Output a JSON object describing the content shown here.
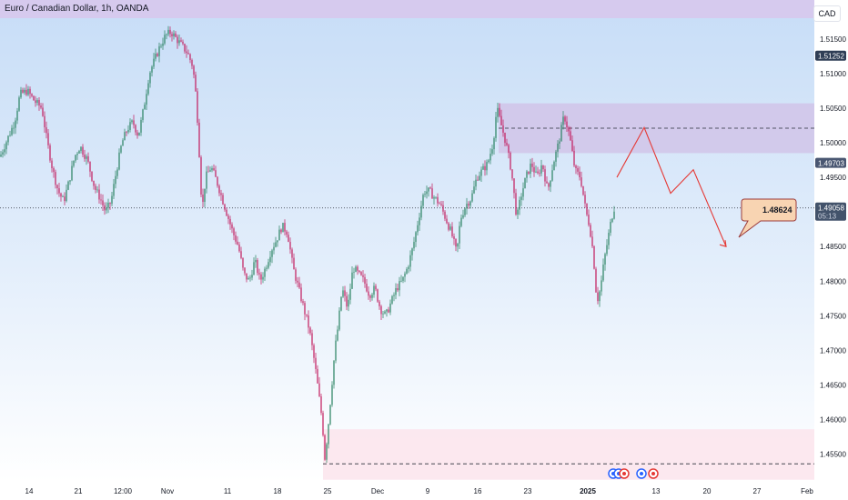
{
  "header": {
    "title": "Euro / Canadian Dollar, 1h, OANDA",
    "currency": "CAD"
  },
  "colors": {
    "up": "#089981",
    "down": "#f23645",
    "candle": "#c2185b",
    "supply_zone": "#d1c4e9",
    "demand_zone": "#fce4ec",
    "top_band": "#d7c8ec",
    "forecast": "#e53935",
    "callout_bg": "#f8d4b2",
    "callout_border": "#9b3b3b"
  },
  "price_labels": [
    {
      "text": "1.51252",
      "value": 1.51252,
      "bg": "#2f3e56"
    },
    {
      "text": "1.49703",
      "value": 1.49703,
      "bg": "#4a5772"
    },
    {
      "text": "1.49058",
      "value": 1.49058,
      "bg": "#43536b",
      "sub": "05:13"
    }
  ],
  "callout": {
    "text": "1.48624"
  },
  "chart_data": {
    "type": "candlestick",
    "title": "Euro / Canadian Dollar, 1h, OANDA",
    "y_axis": {
      "ticks": [
        "1.51500",
        "1.51000",
        "1.50500",
        "1.50000",
        "1.49500",
        "1.48500",
        "1.48000",
        "1.47500",
        "1.47000",
        "1.46500",
        "1.46000",
        "1.45500"
      ],
      "ylim": [
        1.451,
        1.518
      ],
      "unit": "CAD"
    },
    "x_axis": {
      "ticks": [
        "14",
        "21",
        "12:00",
        "Nov",
        "11",
        "18",
        "25",
        "Dec",
        "9",
        "16",
        "23",
        "2025",
        "13",
        "20",
        "27",
        "Feb"
      ]
    },
    "zones": [
      {
        "name": "supply",
        "ymin": 1.4985,
        "ymax": 1.5057,
        "x_start": "16"
      },
      {
        "name": "demand",
        "ymin": 1.4513,
        "ymax": 1.4586,
        "x_start": "25"
      }
    ],
    "lines": [
      {
        "style": "dotted",
        "y": 1.49058
      },
      {
        "style": "dashed",
        "y": 1.5021
      },
      {
        "style": "dashed",
        "y": 1.4536
      }
    ],
    "price_path": [
      [
        0,
        1.498
      ],
      [
        8,
        1.5005
      ],
      [
        16,
        1.503
      ],
      [
        22,
        1.507
      ],
      [
        30,
        1.5075
      ],
      [
        38,
        1.506
      ],
      [
        46,
        1.505
      ],
      [
        52,
        1.5
      ],
      [
        58,
        1.496
      ],
      [
        64,
        1.493
      ],
      [
        70,
        1.4915
      ],
      [
        76,
        1.4945
      ],
      [
        82,
        1.498
      ],
      [
        88,
        1.4995
      ],
      [
        96,
        1.4975
      ],
      [
        104,
        1.4935
      ],
      [
        110,
        1.492
      ],
      [
        116,
        1.49
      ],
      [
        122,
        1.4915
      ],
      [
        128,
        1.496
      ],
      [
        134,
        1.5
      ],
      [
        140,
        1.502
      ],
      [
        146,
        1.503
      ],
      [
        152,
        1.501
      ],
      [
        158,
        1.505
      ],
      [
        164,
        1.51
      ],
      [
        170,
        1.512
      ],
      [
        176,
        1.514
      ],
      [
        182,
        1.5155
      ],
      [
        188,
        1.516
      ],
      [
        194,
        1.515
      ],
      [
        200,
        1.514
      ],
      [
        206,
        1.513
      ],
      [
        212,
        1.511
      ],
      [
        216,
        1.506
      ],
      [
        220,
        1.496
      ],
      [
        222,
        1.49
      ],
      [
        226,
        1.495
      ],
      [
        232,
        1.4965
      ],
      [
        238,
        1.4945
      ],
      [
        244,
        1.492
      ],
      [
        250,
        1.4895
      ],
      [
        256,
        1.487
      ],
      [
        262,
        1.485
      ],
      [
        268,
        1.481
      ],
      [
        274,
        1.48
      ],
      [
        280,
        1.483
      ],
      [
        286,
        1.48
      ],
      [
        292,
        1.482
      ],
      [
        298,
        1.4845
      ],
      [
        304,
        1.486
      ],
      [
        310,
        1.488
      ],
      [
        316,
        1.487
      ],
      [
        322,
        1.482
      ],
      [
        328,
        1.479
      ],
      [
        334,
        1.476
      ],
      [
        340,
        1.473
      ],
      [
        346,
        1.468
      ],
      [
        350,
        1.464
      ],
      [
        354,
        1.46
      ],
      [
        357,
        1.4545
      ],
      [
        360,
        1.458
      ],
      [
        364,
        1.464
      ],
      [
        368,
        1.47
      ],
      [
        372,
        1.474
      ],
      [
        376,
        1.479
      ],
      [
        382,
        1.476
      ],
      [
        388,
        1.482
      ],
      [
        394,
        1.481
      ],
      [
        400,
        1.48
      ],
      [
        406,
        1.478
      ],
      [
        412,
        1.479
      ],
      [
        418,
        1.476
      ],
      [
        424,
        1.475
      ],
      [
        430,
        1.477
      ],
      [
        436,
        1.479
      ],
      [
        442,
        1.48
      ],
      [
        448,
        1.482
      ],
      [
        454,
        1.485
      ],
      [
        460,
        1.489
      ],
      [
        466,
        1.493
      ],
      [
        472,
        1.493
      ],
      [
        478,
        1.492
      ],
      [
        484,
        1.491
      ],
      [
        490,
        1.489
      ],
      [
        496,
        1.487
      ],
      [
        502,
        1.484
      ],
      [
        506,
        1.489
      ],
      [
        512,
        1.491
      ],
      [
        518,
        1.492
      ],
      [
        524,
        1.495
      ],
      [
        530,
        1.496
      ],
      [
        536,
        1.497
      ],
      [
        542,
        1.5
      ],
      [
        546,
        1.505
      ],
      [
        550,
        1.503
      ],
      [
        556,
        1.5
      ],
      [
        562,
        1.496
      ],
      [
        568,
        1.489
      ],
      [
        572,
        1.492
      ],
      [
        578,
        1.495
      ],
      [
        584,
        1.497
      ],
      [
        590,
        1.495
      ],
      [
        596,
        1.497
      ],
      [
        602,
        1.493
      ],
      [
        608,
        1.497
      ],
      [
        614,
        1.5
      ],
      [
        620,
        1.504
      ],
      [
        626,
        1.501
      ],
      [
        632,
        1.496
      ],
      [
        638,
        1.495
      ],
      [
        644,
        1.49
      ],
      [
        648,
        1.488
      ],
      [
        652,
        1.484
      ],
      [
        656,
        1.477
      ],
      [
        660,
        1.479
      ],
      [
        664,
        1.483
      ],
      [
        668,
        1.486
      ],
      [
        672,
        1.489
      ],
      [
        675,
        1.49058
      ]
    ],
    "forecast_path": [
      [
        678,
        1.495
      ],
      [
        708,
        1.5022
      ],
      [
        737,
        1.4927
      ],
      [
        762,
        1.4961
      ],
      [
        798,
        1.485
      ]
    ]
  }
}
